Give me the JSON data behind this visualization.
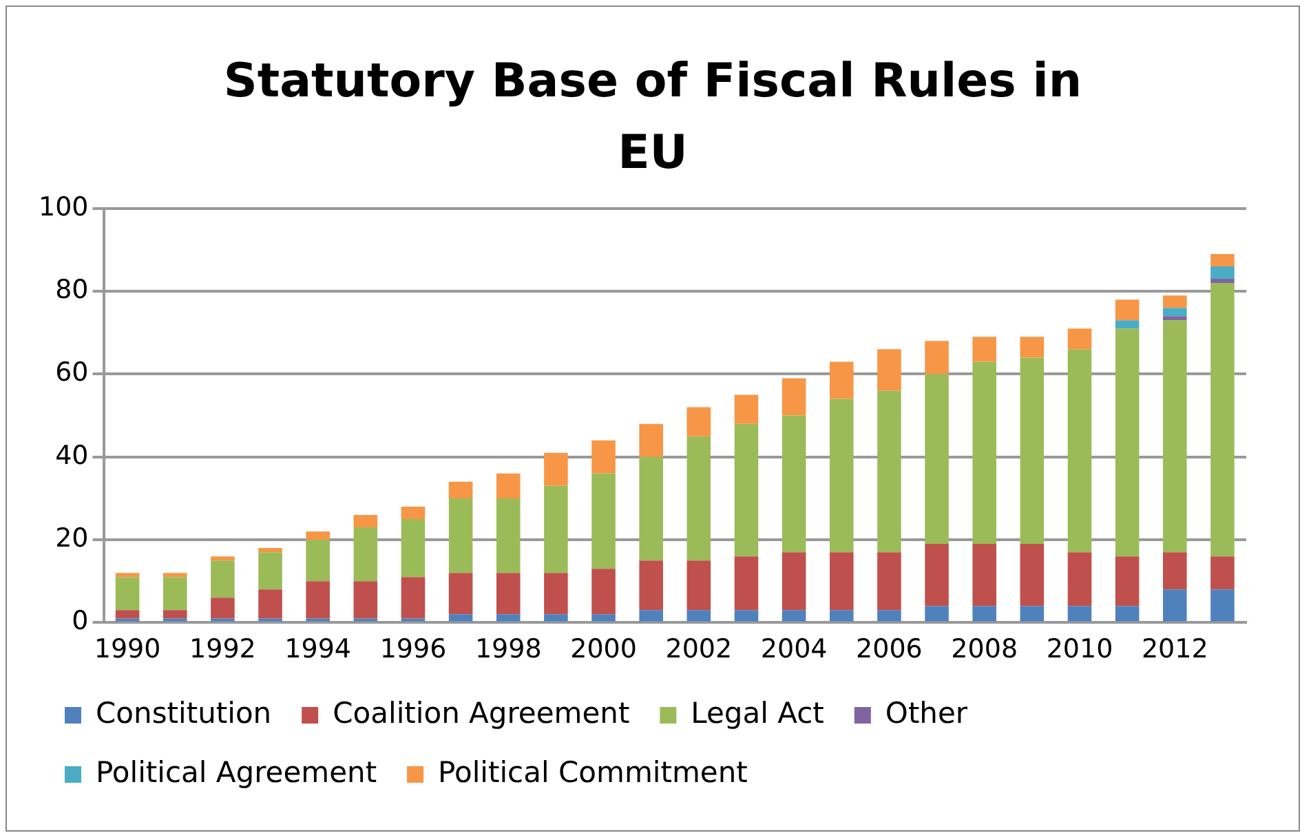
{
  "chart_data": {
    "type": "bar",
    "title": "Statutory Base of Fiscal Rules in EU",
    "stacked": true,
    "grid": "y",
    "legend": "bottom",
    "categories": [
      "1990",
      null,
      "1992",
      null,
      "1994",
      null,
      "1996",
      null,
      "1998",
      null,
      "2000",
      null,
      "2002",
      null,
      "2004",
      null,
      "2006",
      null,
      "2008",
      null,
      "2010",
      null,
      "2012",
      null
    ],
    "ylim": [
      0,
      100
    ],
    "yticks": [
      0,
      20,
      40,
      60,
      80,
      100
    ],
    "series": [
      {
        "name": "Constitution",
        "color": "#4f81bd",
        "values": [
          1,
          1,
          1,
          1,
          1,
          1,
          1,
          2,
          2,
          2,
          2,
          3,
          3,
          3,
          3,
          3,
          3,
          4,
          4,
          4,
          4,
          4,
          8,
          8
        ]
      },
      {
        "name": "Coalition Agreement",
        "color": "#c0504d",
        "values": [
          2,
          2,
          5,
          7,
          9,
          9,
          10,
          10,
          10,
          10,
          11,
          12,
          12,
          13,
          14,
          14,
          14,
          15,
          15,
          15,
          13,
          12,
          9,
          8
        ]
      },
      {
        "name": "Legal Act",
        "color": "#9bbb59",
        "values": [
          8,
          8,
          9,
          9,
          10,
          13,
          14,
          18,
          18,
          21,
          23,
          25,
          30,
          32,
          33,
          37,
          39,
          41,
          44,
          45,
          49,
          55,
          56,
          66
        ]
      },
      {
        "name": "Other",
        "color": "#8064a2",
        "values": [
          0,
          0,
          0,
          0,
          0,
          0,
          0,
          0,
          0,
          0,
          0,
          0,
          0,
          0,
          0,
          0,
          0,
          0,
          0,
          0,
          0,
          0,
          1,
          1
        ]
      },
      {
        "name": "Political Agreement",
        "color": "#4bacc6",
        "values": [
          0,
          0,
          0,
          0,
          0,
          0,
          0,
          0,
          0,
          0,
          0,
          0,
          0,
          0,
          0,
          0,
          0,
          0,
          0,
          0,
          0,
          2,
          2,
          3
        ]
      },
      {
        "name": "Political Commitment",
        "color": "#f79646",
        "values": [
          1,
          1,
          1,
          1,
          2,
          3,
          3,
          4,
          6,
          8,
          8,
          8,
          7,
          7,
          9,
          9,
          10,
          8,
          6,
          5,
          5,
          5,
          3,
          3
        ]
      }
    ]
  }
}
